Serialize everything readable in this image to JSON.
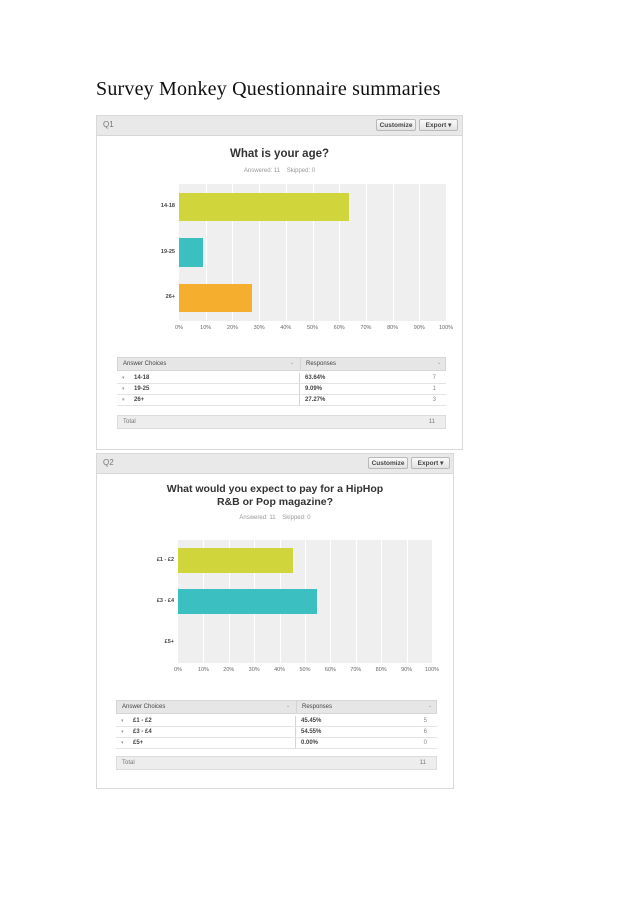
{
  "page_title": "Survey Monkey Questionnaire summaries",
  "colors": {
    "bar_colors": [
      "#cfd53a",
      "#3cbfc0",
      "#f6ae2f"
    ]
  },
  "icons": {
    "sort": "chevron-down-icon",
    "row_toggle": "caret-down-icon"
  },
  "questions": [
    {
      "number": "Q1",
      "customize_label": "Customize",
      "export_label": "Export ▾",
      "title_lines": [
        "What is your age?"
      ],
      "answered_text": "Answered: 11    Skipped: 0",
      "table": {
        "col1_header": "Answer Choices",
        "col2_header": "Responses",
        "rows": [
          {
            "choice": "14-18",
            "percent": "63.64%",
            "count": "7"
          },
          {
            "choice": "19-25",
            "percent": "9.09%",
            "count": "1"
          },
          {
            "choice": "26+",
            "percent": "27.27%",
            "count": "3"
          }
        ],
        "total_label": "Total",
        "total_value": "11"
      }
    },
    {
      "number": "Q2",
      "customize_label": "Customize",
      "export_label": "Export ▾",
      "title_lines": [
        "What would you expect to pay for a HipHop",
        "R&B or Pop magazine?"
      ],
      "answered_text": "Answered: 11    Skipped: 0",
      "table": {
        "col1_header": "Answer Choices",
        "col2_header": "Responses",
        "rows": [
          {
            "choice": "£1 - £2",
            "percent": "45.45%",
            "count": "5"
          },
          {
            "choice": "£3 - £4",
            "percent": "54.55%",
            "count": "6"
          },
          {
            "choice": "£5+",
            "percent": "0.00%",
            "count": "0"
          }
        ],
        "total_label": "Total",
        "total_value": "11"
      }
    }
  ],
  "chart_data": [
    {
      "type": "bar",
      "orientation": "horizontal",
      "title": "What is your age?",
      "categories": [
        "14-18",
        "19-25",
        "26+"
      ],
      "values": [
        63.64,
        9.09,
        27.27
      ],
      "xlim": [
        0,
        100
      ],
      "x_ticks": [
        "0%",
        "10%",
        "20%",
        "30%",
        "40%",
        "50%",
        "60%",
        "70%",
        "80%",
        "90%",
        "100%"
      ],
      "grid": true
    },
    {
      "type": "bar",
      "orientation": "horizontal",
      "title": "What would you expect to pay for a HipHop R&B or Pop magazine?",
      "categories": [
        "£1 - £2",
        "£3 - £4",
        "£5+"
      ],
      "values": [
        45.45,
        54.55,
        0.0
      ],
      "xlim": [
        0,
        100
      ],
      "x_ticks": [
        "0%",
        "10%",
        "20%",
        "30%",
        "40%",
        "50%",
        "60%",
        "70%",
        "80%",
        "90%",
        "100%"
      ],
      "grid": true
    }
  ]
}
